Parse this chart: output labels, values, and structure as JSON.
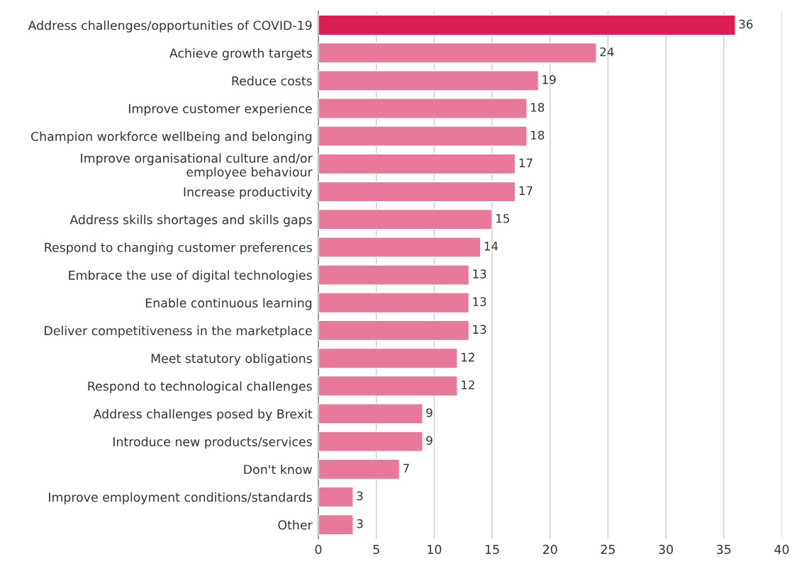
{
  "chart_data": {
    "type": "bar",
    "orientation": "horizontal",
    "categories": [
      "Address challenges/opportunities of COVID-19",
      "Achieve growth targets",
      "Reduce costs",
      "Improve customer experience",
      "Champion workforce wellbeing and belonging",
      "Improve organisational culture and/or\nemployee behaviour",
      "Increase productivity",
      "Address skills shortages and skills gaps",
      "Respond to changing customer preferences",
      "Embrace the use of digital technologies",
      "Enable continuous learning",
      "Deliver competitiveness in the marketplace",
      "Meet statutory obligations",
      "Respond to technological challenges",
      "Address challenges posed by Brexit",
      "Introduce new products/services",
      "Don't know",
      "Improve employment conditions/standards",
      "Other"
    ],
    "values": [
      36,
      24,
      19,
      18,
      18,
      17,
      17,
      15,
      14,
      13,
      13,
      13,
      12,
      12,
      9,
      9,
      7,
      3,
      3
    ],
    "colors": [
      "#dc1c54",
      "#e8799a",
      "#e8799a",
      "#e8799a",
      "#e8799a",
      "#e8799a",
      "#e8799a",
      "#e8799a",
      "#e8799a",
      "#e8799a",
      "#e8799a",
      "#e8799a",
      "#e8799a",
      "#e8799a",
      "#e8799a",
      "#e8799a",
      "#e8799a",
      "#e8799a",
      "#e8799a"
    ],
    "xlim": [
      0,
      40
    ],
    "xticks": [
      0,
      5,
      10,
      15,
      20,
      25,
      30,
      35,
      40
    ],
    "grid": "x",
    "data_labels": true
  }
}
